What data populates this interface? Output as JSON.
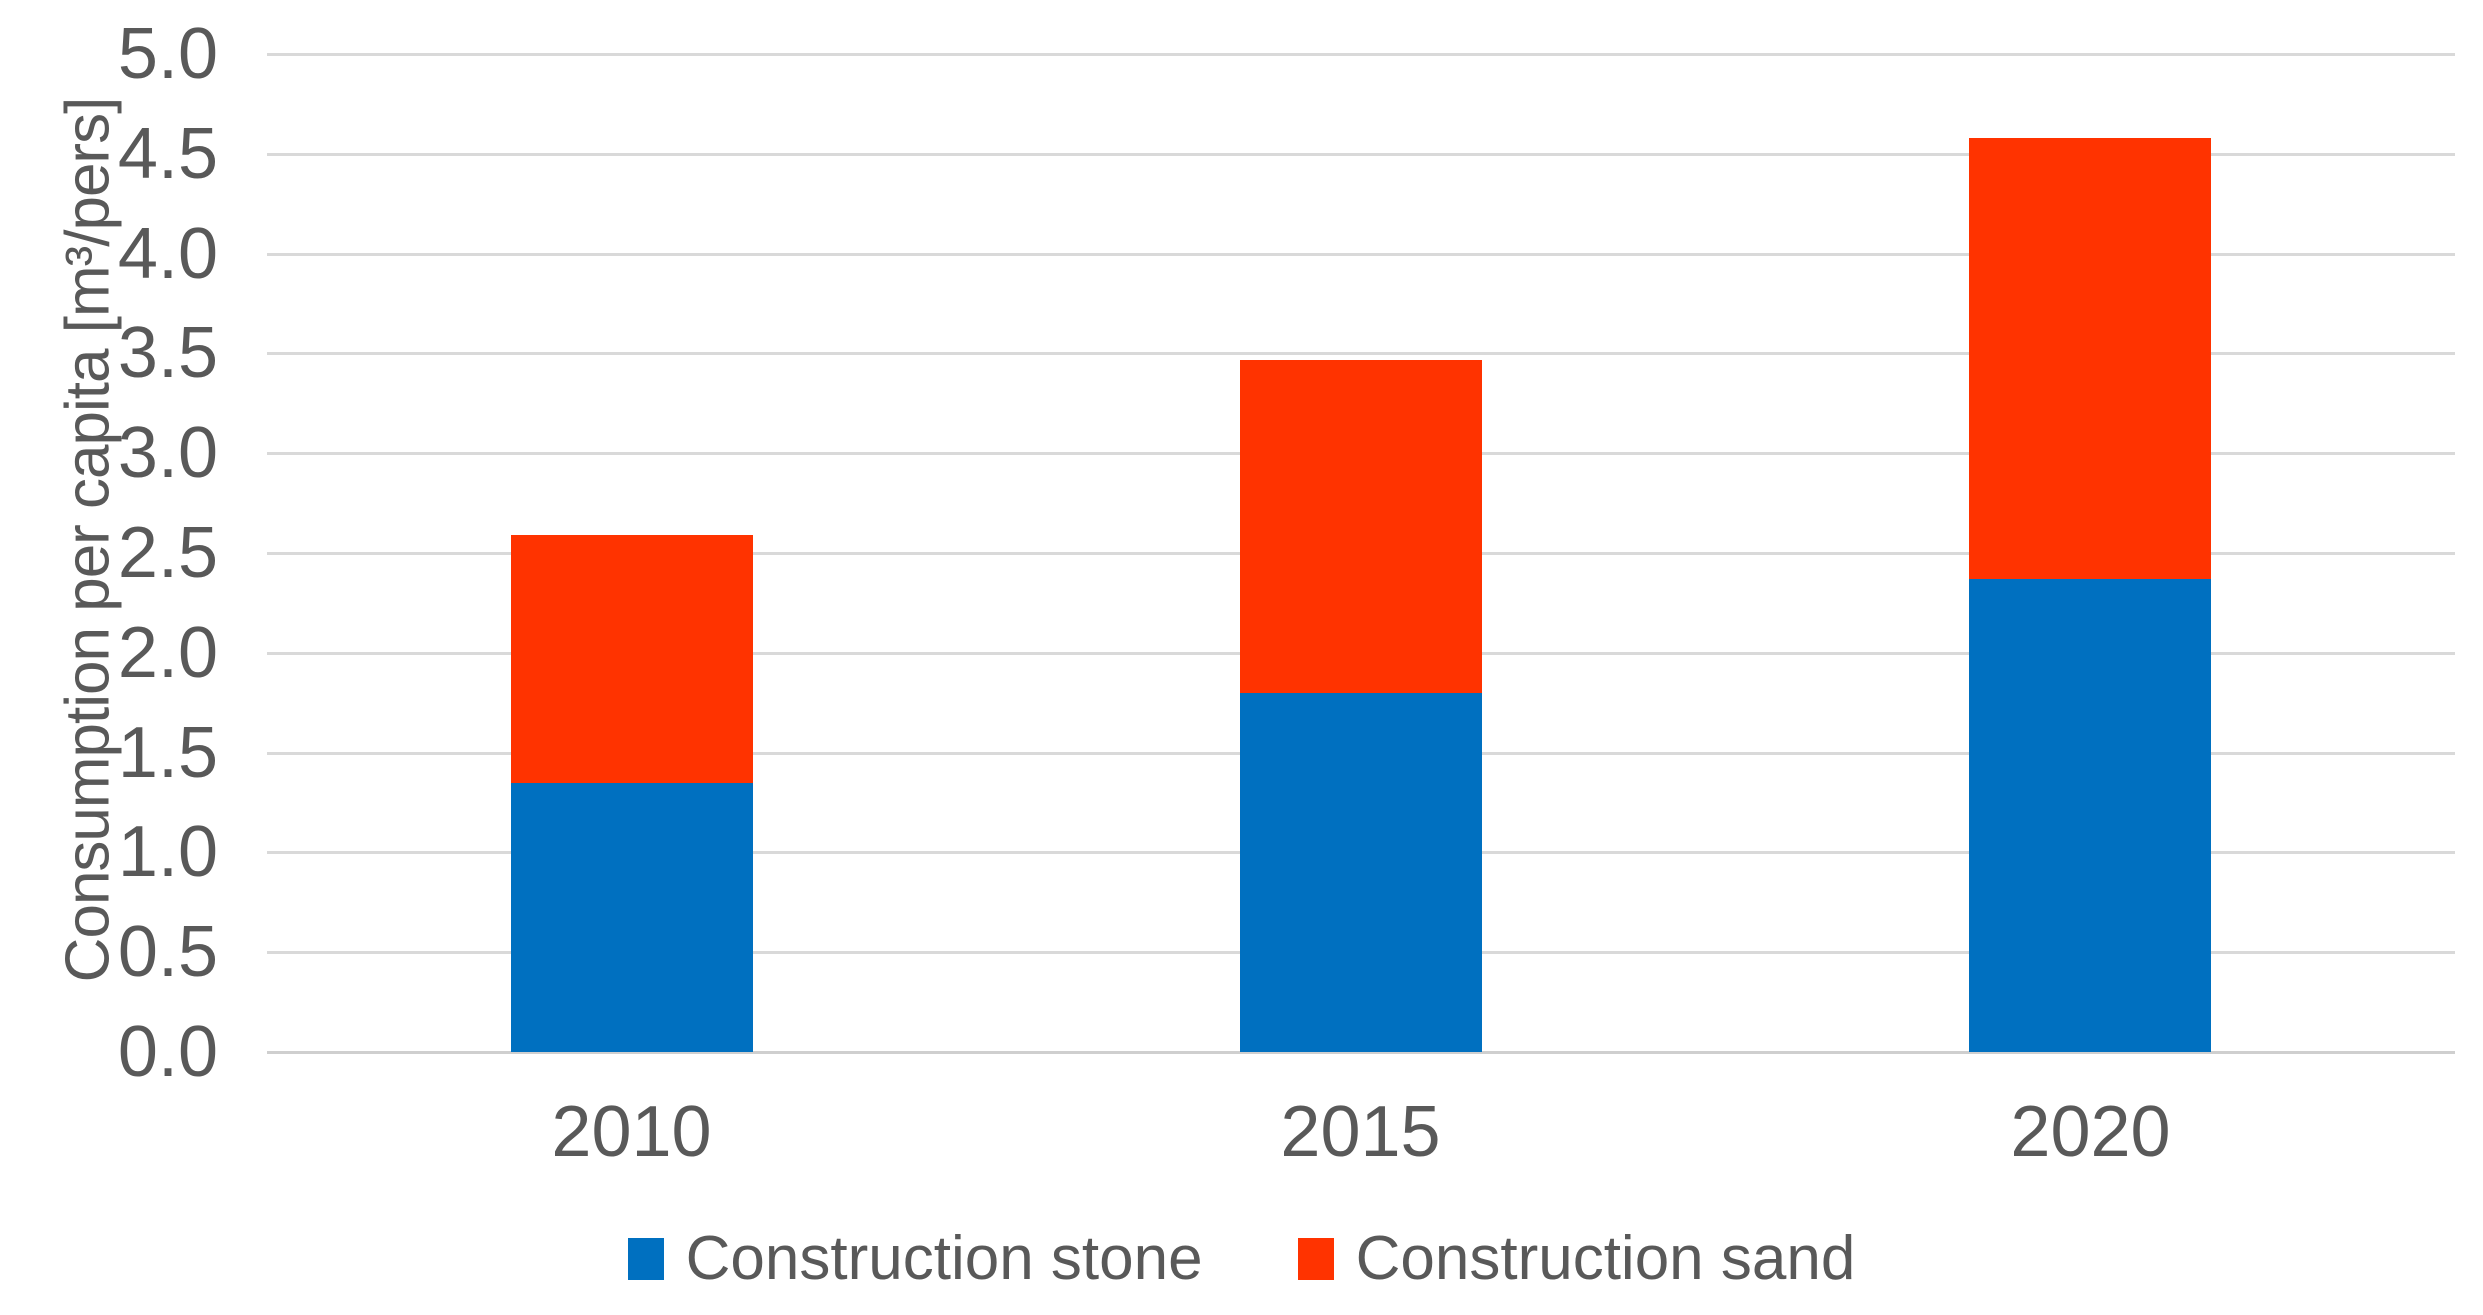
{
  "chart_data": {
    "type": "bar",
    "stacked": true,
    "title": "",
    "categories": [
      "2010",
      "2015",
      "2020"
    ],
    "series": [
      {
        "name": "Construction stone",
        "color": "#0070C0",
        "values": [
          1.35,
          1.8,
          2.37
        ]
      },
      {
        "name": "Construction sand",
        "color": "#FF3300",
        "values": [
          1.24,
          1.67,
          2.21
        ]
      }
    ],
    "totals": [
      2.59,
      3.47,
      4.58
    ],
    "xlabel": "",
    "ylabel": "Consumption per capita [m³/pers]",
    "ylim": [
      0,
      5
    ],
    "ytick_step": 0.5,
    "yticks": [
      "5.0",
      "4.5",
      "4.0",
      "3.5",
      "3.0",
      "2.5",
      "2.0",
      "1.5",
      "1.0",
      "0.5",
      "0.0"
    ],
    "grid": true,
    "legend_position": "bottom"
  },
  "colors": {
    "text": "#595959",
    "gridline": "#D9D9D9",
    "axis_line": "#CFCFCF",
    "background": "#FFFFFF",
    "series_stone": "#0070C0",
    "series_sand": "#FF3300"
  }
}
